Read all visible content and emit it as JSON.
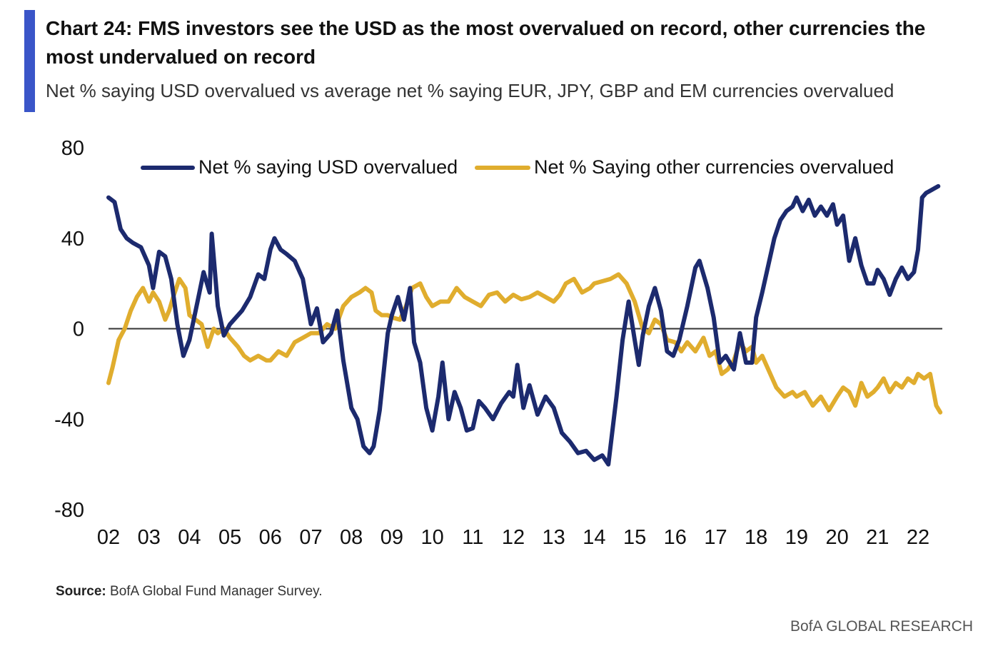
{
  "title": "Chart 24: FMS investors see the USD as the most overvalued on record, other currencies the most undervalued on record",
  "subtitle": "Net % saying USD overvalued vs average net % saying EUR, JPY, GBP and EM currencies overvalued",
  "source_label": "Source:",
  "source_text": "BofA Global Fund Manager Survey.",
  "footer": "BofA GLOBAL RESEARCH",
  "colors": {
    "usd": "#1c2a6e",
    "other": "#e0ad2e",
    "accent": "#3a55c8",
    "zero_line": "#333333"
  },
  "chart_data": {
    "type": "line",
    "title": "",
    "xlabel": "",
    "ylabel": "",
    "xlim": [
      2002,
      2022.6
    ],
    "ylim": [
      -80,
      80
    ],
    "yticks": [
      80,
      40,
      0,
      -40,
      -80
    ],
    "ytick_labels": [
      "80",
      "40",
      "0",
      "-40",
      "-80"
    ],
    "xticks": [
      2002,
      2003,
      2004,
      2005,
      2006,
      2007,
      2008,
      2009,
      2010,
      2011,
      2012,
      2013,
      2014,
      2015,
      2016,
      2017,
      2018,
      2019,
      2020,
      2021,
      2022
    ],
    "xtick_labels": [
      "02",
      "03",
      "04",
      "05",
      "06",
      "07",
      "08",
      "09",
      "10",
      "11",
      "12",
      "13",
      "14",
      "15",
      "16",
      "17",
      "18",
      "19",
      "20",
      "21",
      "22"
    ],
    "legend_position": "top",
    "series": [
      {
        "name": "Net % saying USD overvalued",
        "color": "#1c2a6e",
        "x": [
          2002.0,
          2002.15,
          2002.3,
          2002.45,
          2002.6,
          2002.8,
          2003.0,
          2003.1,
          2003.25,
          2003.4,
          2003.55,
          2003.7,
          2003.85,
          2004.0,
          2004.2,
          2004.35,
          2004.5,
          2004.55,
          2004.7,
          2004.85,
          2005.0,
          2005.3,
          2005.5,
          2005.7,
          2005.85,
          2006.0,
          2006.1,
          2006.25,
          2006.4,
          2006.6,
          2006.8,
          2007.0,
          2007.15,
          2007.3,
          2007.5,
          2007.65,
          2007.8,
          2008.0,
          2008.15,
          2008.3,
          2008.45,
          2008.55,
          2008.7,
          2008.9,
          2009.0,
          2009.15,
          2009.3,
          2009.45,
          2009.55,
          2009.7,
          2009.85,
          2010.0,
          2010.15,
          2010.25,
          2010.4,
          2010.55,
          2010.7,
          2010.85,
          2011.0,
          2011.15,
          2011.3,
          2011.5,
          2011.7,
          2011.9,
          2012.0,
          2012.1,
          2012.25,
          2012.4,
          2012.6,
          2012.8,
          2013.0,
          2013.2,
          2013.4,
          2013.6,
          2013.8,
          2014.0,
          2014.2,
          2014.35,
          2014.45,
          2014.55,
          2014.7,
          2014.85,
          2015.0,
          2015.1,
          2015.2,
          2015.35,
          2015.5,
          2015.65,
          2015.8,
          2015.95,
          2016.1,
          2016.3,
          2016.5,
          2016.6,
          2016.8,
          2016.95,
          2017.1,
          2017.25,
          2017.45,
          2017.6,
          2017.75,
          2017.9,
          2018.0,
          2018.15,
          2018.3,
          2018.45,
          2018.6,
          2018.75,
          2018.9,
          2019.0,
          2019.15,
          2019.3,
          2019.45,
          2019.6,
          2019.75,
          2019.9,
          2020.0,
          2020.15,
          2020.3,
          2020.45,
          2020.6,
          2020.75,
          2020.9,
          2021.0,
          2021.15,
          2021.3,
          2021.45,
          2021.6,
          2021.75,
          2021.9,
          2022.0,
          2022.1,
          2022.2,
          2022.3,
          2022.4,
          2022.5
        ],
        "y": [
          58,
          56,
          44,
          40,
          38,
          36,
          28,
          18,
          34,
          32,
          22,
          2,
          -12,
          -5,
          12,
          25,
          16,
          42,
          10,
          -3,
          2,
          8,
          14,
          24,
          22,
          35,
          40,
          35,
          33,
          30,
          22,
          2,
          9,
          -6,
          -2,
          8,
          -14,
          -35,
          -40,
          -52,
          -55,
          -52,
          -36,
          -2,
          6,
          14,
          4,
          18,
          -6,
          -15,
          -35,
          -45,
          -30,
          -15,
          -40,
          -28,
          -35,
          -45,
          -44,
          -32,
          -35,
          -40,
          -33,
          -28,
          -30,
          -16,
          -35,
          -25,
          -38,
          -30,
          -35,
          -46,
          -50,
          -55,
          -54,
          -58,
          -56,
          -60,
          -45,
          -30,
          -5,
          12,
          -5,
          -16,
          -3,
          10,
          18,
          8,
          -10,
          -12,
          -5,
          10,
          27,
          30,
          18,
          5,
          -15,
          -12,
          -18,
          -2,
          -15,
          -15,
          5,
          16,
          28,
          40,
          48,
          52,
          54,
          58,
          52,
          57,
          50,
          54,
          50,
          55,
          46,
          50,
          30,
          40,
          28,
          20,
          20,
          26,
          22,
          15,
          22,
          27,
          22,
          25,
          35,
          58,
          60,
          61,
          62,
          63
        ]
      },
      {
        "name": "Net % Saying other currencies overvalued",
        "color": "#e0ad2e",
        "x": [
          2002.0,
          2002.1,
          2002.25,
          2002.4,
          2002.55,
          2002.7,
          2002.85,
          2003.0,
          2003.1,
          2003.25,
          2003.4,
          2003.5,
          2003.6,
          2003.75,
          2003.9,
          2004.0,
          2004.15,
          2004.3,
          2004.45,
          2004.6,
          2004.7,
          2004.85,
          2005.0,
          2005.2,
          2005.35,
          2005.5,
          2005.7,
          2005.9,
          2006.0,
          2006.2,
          2006.4,
          2006.6,
          2006.8,
          2007.0,
          2007.2,
          2007.4,
          2007.6,
          2007.8,
          2008.0,
          2008.2,
          2008.35,
          2008.5,
          2008.6,
          2008.75,
          2008.9,
          2009.0,
          2009.2,
          2009.35,
          2009.5,
          2009.7,
          2009.85,
          2010.0,
          2010.2,
          2010.4,
          2010.6,
          2010.8,
          2011.0,
          2011.2,
          2011.4,
          2011.6,
          2011.8,
          2012.0,
          2012.2,
          2012.4,
          2012.6,
          2012.8,
          2013.0,
          2013.15,
          2013.3,
          2013.5,
          2013.7,
          2013.9,
          2014.0,
          2014.2,
          2014.4,
          2014.6,
          2014.8,
          2015.0,
          2015.2,
          2015.35,
          2015.5,
          2015.65,
          2015.8,
          2016.0,
          2016.15,
          2016.3,
          2016.5,
          2016.7,
          2016.85,
          2017.0,
          2017.15,
          2017.3,
          2017.45,
          2017.6,
          2017.75,
          2017.9,
          2018.0,
          2018.15,
          2018.3,
          2018.5,
          2018.7,
          2018.9,
          2019.0,
          2019.2,
          2019.4,
          2019.6,
          2019.8,
          2020.0,
          2020.15,
          2020.3,
          2020.45,
          2020.6,
          2020.75,
          2020.9,
          2021.0,
          2021.15,
          2021.3,
          2021.45,
          2021.6,
          2021.75,
          2021.9,
          2022.0,
          2022.15,
          2022.3,
          2022.45,
          2022.55
        ],
        "y": [
          -24,
          -17,
          -5,
          0,
          8,
          14,
          18,
          12,
          16,
          12,
          4,
          8,
          14,
          22,
          18,
          6,
          4,
          2,
          -8,
          0,
          -2,
          0,
          -4,
          -8,
          -12,
          -14,
          -12,
          -14,
          -14,
          -10,
          -12,
          -6,
          -4,
          -2,
          -2,
          2,
          0,
          10,
          14,
          16,
          18,
          16,
          8,
          6,
          6,
          5,
          4,
          10,
          18,
          20,
          14,
          10,
          12,
          12,
          18,
          14,
          12,
          10,
          15,
          16,
          12,
          15,
          13,
          14,
          16,
          14,
          12,
          15,
          20,
          22,
          16,
          18,
          20,
          21,
          22,
          24,
          20,
          12,
          0,
          -2,
          4,
          2,
          -5,
          -6,
          -10,
          -6,
          -10,
          -4,
          -12,
          -10,
          -20,
          -18,
          -14,
          -6,
          -10,
          -8,
          -15,
          -12,
          -18,
          -26,
          -30,
          -28,
          -30,
          -28,
          -34,
          -30,
          -36,
          -30,
          -26,
          -28,
          -34,
          -24,
          -30,
          -28,
          -26,
          -22,
          -28,
          -24,
          -26,
          -22,
          -24,
          -20,
          -22,
          -20,
          -34,
          -37
        ]
      }
    ]
  }
}
